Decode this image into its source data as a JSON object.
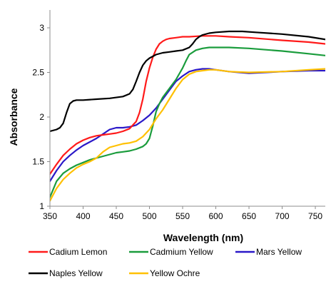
{
  "chart_data": {
    "type": "line",
    "xlabel": "Wavelength (nm)",
    "ylabel": "Absorbance",
    "xlim": [
      350,
      765
    ],
    "ylim": [
      1,
      3.2
    ],
    "xticks": [
      "350",
      "400",
      "450",
      "500",
      "550",
      "600",
      "650",
      "700",
      "750"
    ],
    "yticks": [
      "1",
      "1.5",
      "2",
      "2.5",
      "3"
    ],
    "grid": false,
    "legend_position": "bottom",
    "series": [
      {
        "name": "Cadium Lemon",
        "color": "#ff1a1a",
        "x": [
          350,
          360,
          370,
          380,
          390,
          400,
          410,
          420,
          430,
          440,
          450,
          460,
          470,
          480,
          485,
          490,
          495,
          500,
          505,
          510,
          515,
          520,
          525,
          530,
          540,
          550,
          560,
          580,
          600,
          620,
          650,
          700,
          740,
          765
        ],
        "y": [
          1.36,
          1.47,
          1.57,
          1.64,
          1.7,
          1.74,
          1.77,
          1.79,
          1.8,
          1.81,
          1.82,
          1.84,
          1.87,
          1.95,
          2.05,
          2.2,
          2.4,
          2.55,
          2.67,
          2.76,
          2.82,
          2.85,
          2.87,
          2.88,
          2.89,
          2.9,
          2.9,
          2.91,
          2.91,
          2.9,
          2.89,
          2.86,
          2.84,
          2.82
        ]
      },
      {
        "name": "Cadmium Yellow",
        "color": "#1a9c3c",
        "x": [
          350,
          360,
          370,
          380,
          390,
          400,
          410,
          420,
          430,
          440,
          450,
          460,
          470,
          480,
          490,
          495,
          500,
          505,
          510,
          515,
          520,
          530,
          540,
          550,
          555,
          560,
          570,
          580,
          590,
          600,
          620,
          650,
          700,
          740,
          765
        ],
        "y": [
          1.1,
          1.28,
          1.37,
          1.42,
          1.46,
          1.49,
          1.52,
          1.54,
          1.56,
          1.58,
          1.6,
          1.61,
          1.62,
          1.64,
          1.67,
          1.7,
          1.76,
          1.9,
          2.06,
          2.15,
          2.22,
          2.32,
          2.42,
          2.55,
          2.63,
          2.7,
          2.75,
          2.77,
          2.78,
          2.78,
          2.78,
          2.77,
          2.74,
          2.71,
          2.69
        ]
      },
      {
        "name": "Mars Yellow",
        "color": "#2a18c8",
        "x": [
          350,
          360,
          370,
          380,
          390,
          400,
          410,
          420,
          430,
          440,
          450,
          460,
          470,
          480,
          490,
          500,
          510,
          520,
          530,
          540,
          550,
          560,
          570,
          580,
          590,
          600,
          620,
          650,
          700,
          740,
          765
        ],
        "y": [
          1.28,
          1.4,
          1.5,
          1.57,
          1.63,
          1.68,
          1.72,
          1.76,
          1.81,
          1.86,
          1.88,
          1.88,
          1.89,
          1.91,
          1.96,
          2.02,
          2.1,
          2.2,
          2.3,
          2.4,
          2.46,
          2.51,
          2.53,
          2.54,
          2.54,
          2.53,
          2.51,
          2.49,
          2.51,
          2.52,
          2.52
        ]
      },
      {
        "name": "Naples Yellow",
        "color": "#000000",
        "x": [
          350,
          360,
          365,
          370,
          375,
          380,
          385,
          390,
          400,
          420,
          440,
          460,
          470,
          475,
          480,
          485,
          490,
          495,
          500,
          505,
          510,
          520,
          530,
          540,
          550,
          560,
          565,
          570,
          575,
          580,
          590,
          600,
          620,
          640,
          660,
          700,
          740,
          765
        ],
        "y": [
          1.84,
          1.86,
          1.88,
          1.93,
          2.05,
          2.15,
          2.18,
          2.19,
          2.19,
          2.2,
          2.21,
          2.23,
          2.26,
          2.31,
          2.4,
          2.5,
          2.58,
          2.63,
          2.66,
          2.68,
          2.7,
          2.72,
          2.73,
          2.74,
          2.75,
          2.78,
          2.82,
          2.87,
          2.9,
          2.92,
          2.94,
          2.95,
          2.96,
          2.96,
          2.95,
          2.93,
          2.9,
          2.87
        ]
      },
      {
        "name": "Yellow Ochre",
        "color": "#ffc000",
        "x": [
          350,
          360,
          370,
          380,
          390,
          400,
          410,
          420,
          430,
          440,
          450,
          460,
          470,
          480,
          490,
          500,
          510,
          520,
          530,
          540,
          550,
          560,
          570,
          580,
          590,
          600,
          620,
          650,
          700,
          740,
          765
        ],
        "y": [
          1.06,
          1.2,
          1.3,
          1.37,
          1.43,
          1.47,
          1.5,
          1.54,
          1.61,
          1.66,
          1.68,
          1.7,
          1.71,
          1.73,
          1.78,
          1.86,
          1.98,
          2.08,
          2.2,
          2.32,
          2.42,
          2.48,
          2.51,
          2.52,
          2.53,
          2.53,
          2.51,
          2.5,
          2.51,
          2.53,
          2.54
        ]
      }
    ]
  }
}
